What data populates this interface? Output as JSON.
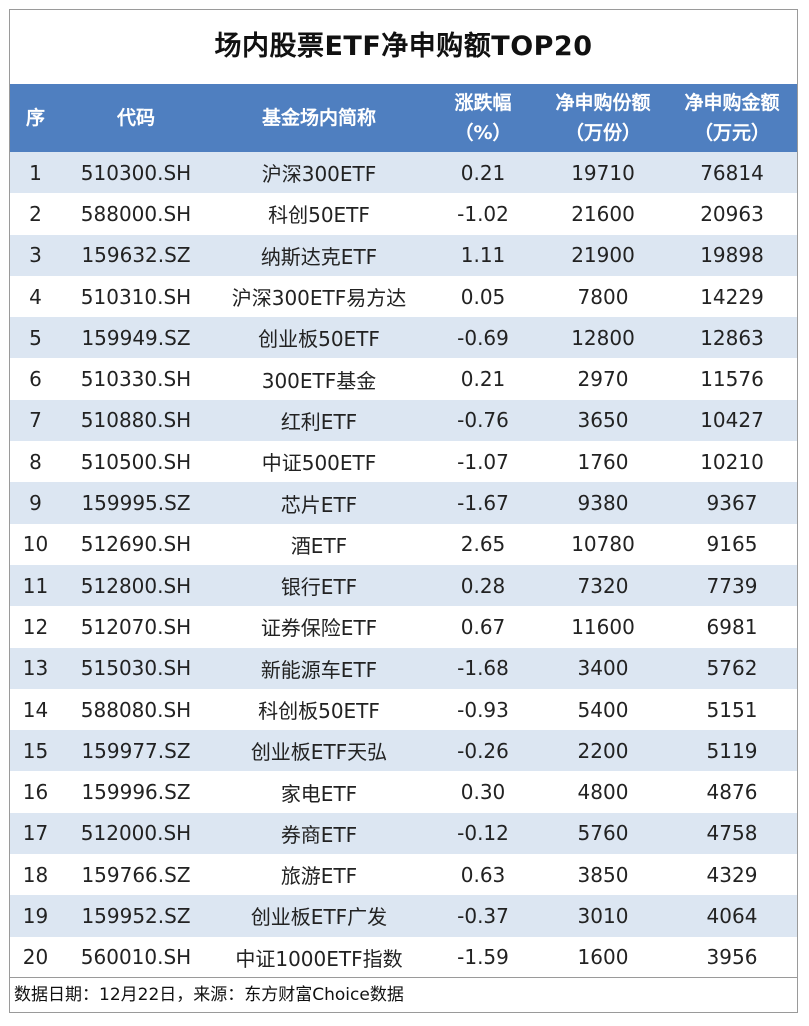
{
  "title": "场内股票ETF净申购额TOP20",
  "columns": {
    "rank": "序",
    "code": "代码",
    "name": "基金场内简称",
    "change_line1": "涨跌幅",
    "change_line2": "（%）",
    "shares_line1": "净申购份额",
    "shares_line2": "（万份）",
    "amount_line1": "净申购金额",
    "amount_line2": "（万元）"
  },
  "rows": [
    {
      "rank": "1",
      "code": "510300.SH",
      "name": "沪深300ETF",
      "change": "0.21",
      "shares": "19710",
      "amount": "76814"
    },
    {
      "rank": "2",
      "code": "588000.SH",
      "name": "科创50ETF",
      "change": "-1.02",
      "shares": "21600",
      "amount": "20963"
    },
    {
      "rank": "3",
      "code": "159632.SZ",
      "name": "纳斯达克ETF",
      "change": "1.11",
      "shares": "21900",
      "amount": "19898"
    },
    {
      "rank": "4",
      "code": "510310.SH",
      "name": "沪深300ETF易方达",
      "change": "0.05",
      "shares": "7800",
      "amount": "14229"
    },
    {
      "rank": "5",
      "code": "159949.SZ",
      "name": "创业板50ETF",
      "change": "-0.69",
      "shares": "12800",
      "amount": "12863"
    },
    {
      "rank": "6",
      "code": "510330.SH",
      "name": "300ETF基金",
      "change": "0.21",
      "shares": "2970",
      "amount": "11576"
    },
    {
      "rank": "7",
      "code": "510880.SH",
      "name": "红利ETF",
      "change": "-0.76",
      "shares": "3650",
      "amount": "10427"
    },
    {
      "rank": "8",
      "code": "510500.SH",
      "name": "中证500ETF",
      "change": "-1.07",
      "shares": "1760",
      "amount": "10210"
    },
    {
      "rank": "9",
      "code": "159995.SZ",
      "name": "芯片ETF",
      "change": "-1.67",
      "shares": "9380",
      "amount": "9367"
    },
    {
      "rank": "10",
      "code": "512690.SH",
      "name": "酒ETF",
      "change": "2.65",
      "shares": "10780",
      "amount": "9165"
    },
    {
      "rank": "11",
      "code": "512800.SH",
      "name": "银行ETF",
      "change": "0.28",
      "shares": "7320",
      "amount": "7739"
    },
    {
      "rank": "12",
      "code": "512070.SH",
      "name": "证券保险ETF",
      "change": "0.67",
      "shares": "11600",
      "amount": "6981"
    },
    {
      "rank": "13",
      "code": "515030.SH",
      "name": "新能源车ETF",
      "change": "-1.68",
      "shares": "3400",
      "amount": "5762"
    },
    {
      "rank": "14",
      "code": "588080.SH",
      "name": "科创板50ETF",
      "change": "-0.93",
      "shares": "5400",
      "amount": "5151"
    },
    {
      "rank": "15",
      "code": "159977.SZ",
      "name": "创业板ETF天弘",
      "change": "-0.26",
      "shares": "2200",
      "amount": "5119"
    },
    {
      "rank": "16",
      "code": "159996.SZ",
      "name": "家电ETF",
      "change": "0.30",
      "shares": "4800",
      "amount": "4876"
    },
    {
      "rank": "17",
      "code": "512000.SH",
      "name": "券商ETF",
      "change": "-0.12",
      "shares": "5760",
      "amount": "4758"
    },
    {
      "rank": "18",
      "code": "159766.SZ",
      "name": "旅游ETF",
      "change": "0.63",
      "shares": "3850",
      "amount": "4329"
    },
    {
      "rank": "19",
      "code": "159952.SZ",
      "name": "创业板ETF广发",
      "change": "-0.37",
      "shares": "3010",
      "amount": "4064"
    },
    {
      "rank": "20",
      "code": "560010.SH",
      "name": "中证1000ETF指数",
      "change": "-1.59",
      "shares": "1600",
      "amount": "3956"
    }
  ],
  "footer": "数据日期：12月22日，来源：东方财富Choice数据",
  "colors": {
    "header_bg": "#4f7fc0",
    "header_text": "#ffffff",
    "row_stripe": "#dce6f2",
    "row_plain": "#ffffff"
  }
}
